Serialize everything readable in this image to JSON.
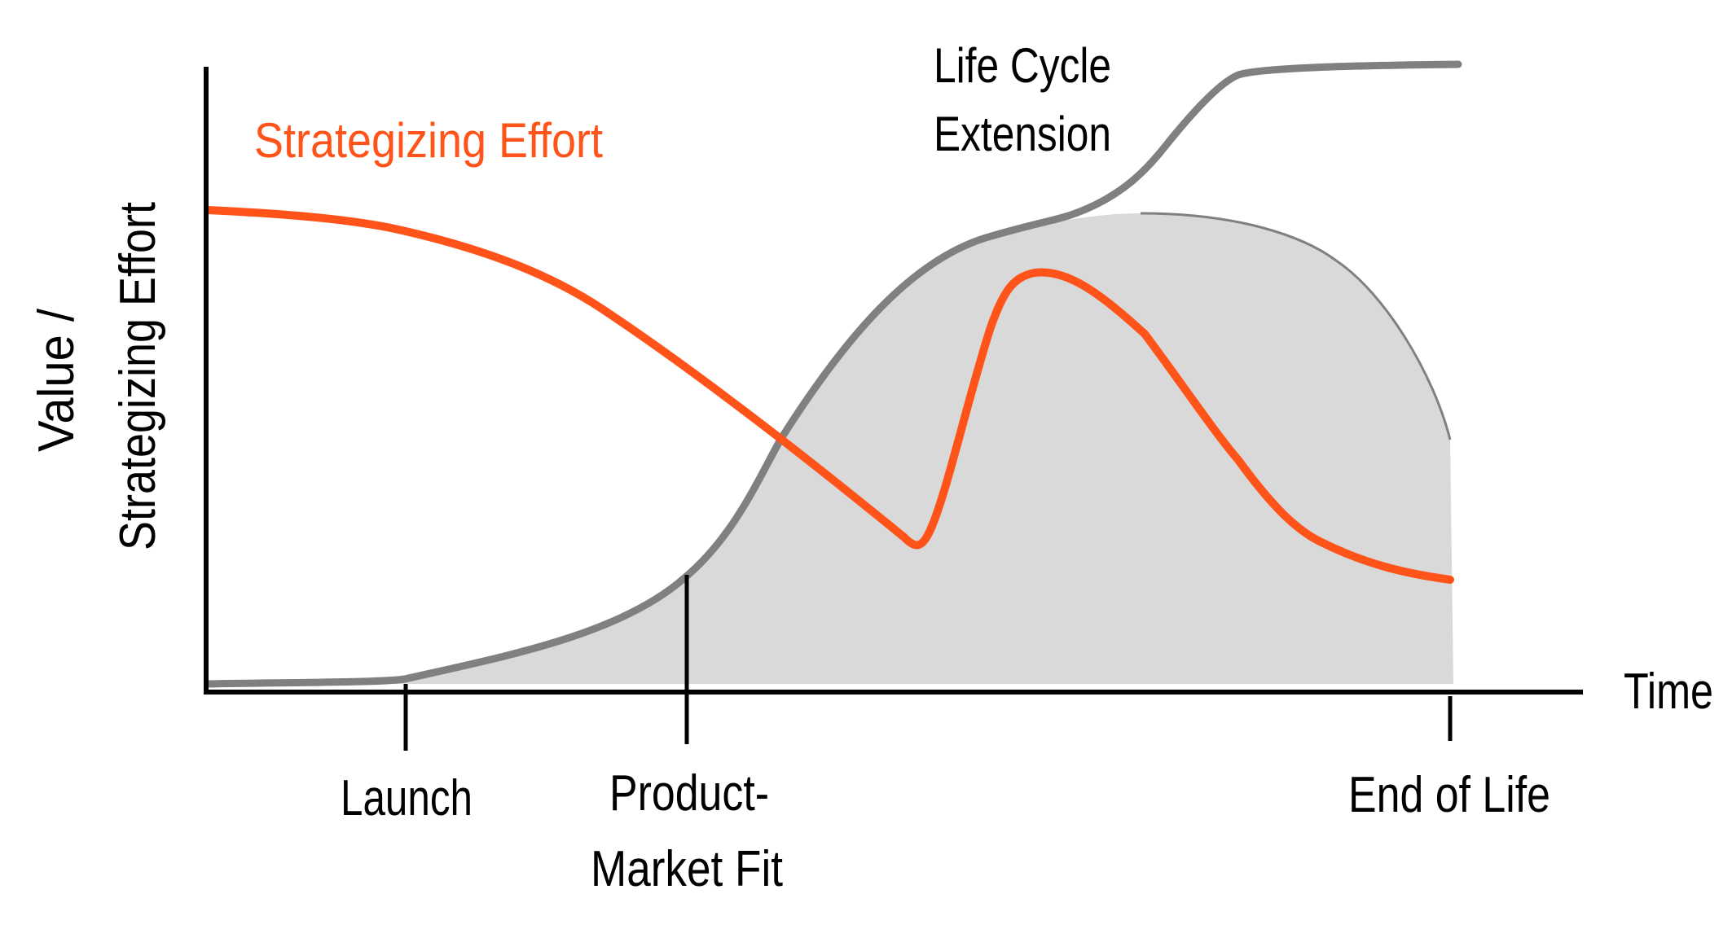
{
  "diagram": {
    "y_axis_label_line1": "Value /",
    "y_axis_label_line2": "Strategizing Effort",
    "x_axis_label": "Time",
    "series_label": "Strategizing Effort",
    "extension_label_line1": "Life Cycle",
    "extension_label_line2": "Extension",
    "milestones": {
      "launch": "Launch",
      "pmf_line1": "Product-",
      "pmf_line2": "Market Fit",
      "end_of_life": "End of Life"
    }
  },
  "colors": {
    "effort_curve": "#FF5319",
    "value_curve": "#808080",
    "value_area": "#D9D9D9",
    "axis": "#000000",
    "series_label": "#FF5319"
  }
}
